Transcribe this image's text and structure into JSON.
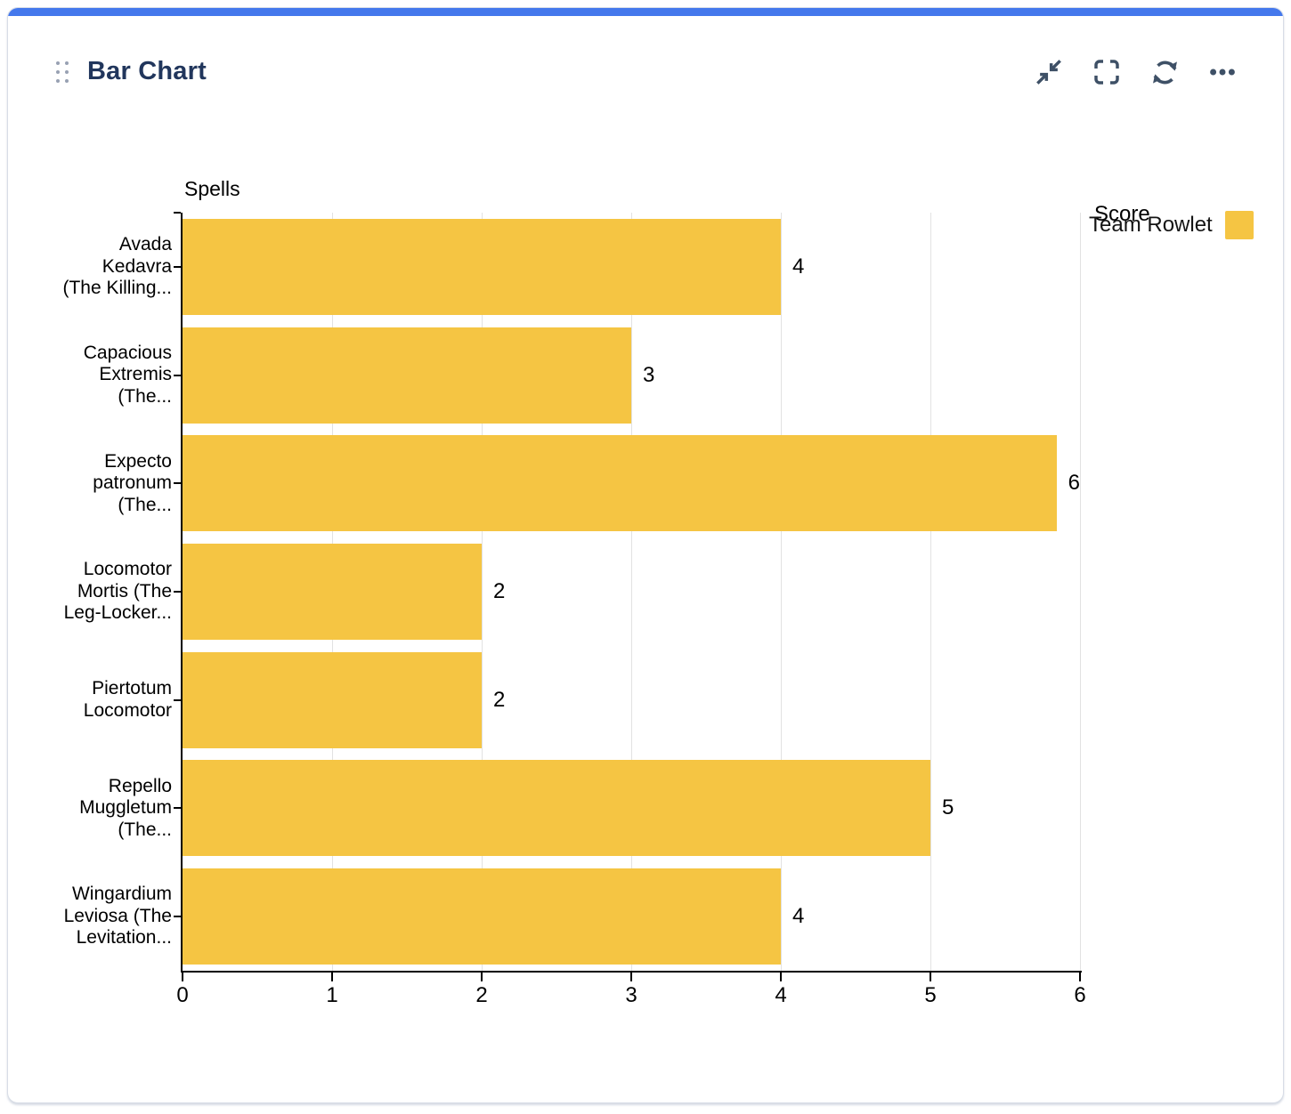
{
  "widget": {
    "title": "Bar Chart",
    "accent_color": "#4478EC",
    "toolbar": {
      "collapse_icon": "collapse-arrows",
      "fullscreen_icon": "fullscreen-brackets",
      "refresh_icon": "refresh-arrows",
      "more_icon": "ellipsis"
    }
  },
  "legend": {
    "label": "Team Rowlet",
    "swatch_color": "#F5C543"
  },
  "chart_data": {
    "type": "bar",
    "orientation": "horizontal",
    "ylabel": "Spells",
    "xlabel": "Score",
    "xlim": [
      0,
      6
    ],
    "xticks": [
      0,
      1,
      2,
      3,
      4,
      5,
      6
    ],
    "grid": true,
    "legend_position": "top-right",
    "bar_color": "#F5C543",
    "categories": [
      "Avada Kedavra (The Killing...",
      "Capacious Extremis (The...",
      "Expecto patronum (The...",
      "Locomotor Mortis (The Leg-Locker...",
      "Piertotum Locomotor",
      "Repello Muggletum (The...",
      "Wingardium Leviosa (The Levitation..."
    ],
    "category_lines": [
      [
        "Avada",
        "Kedavra",
        "(The Killing..."
      ],
      [
        "Capacious",
        "Extremis",
        "(The..."
      ],
      [
        "Expecto",
        "patronum",
        "(The..."
      ],
      [
        "Locomotor",
        "Mortis (The",
        "Leg-Locker..."
      ],
      [
        "Piertotum",
        "Locomotor"
      ],
      [
        "Repello",
        "Muggletum",
        "(The..."
      ],
      [
        "Wingardium",
        "Leviosa (The",
        "Levitation..."
      ]
    ],
    "series": [
      {
        "name": "Team Rowlet",
        "values": [
          4,
          3,
          6,
          2,
          2,
          5,
          4
        ]
      }
    ],
    "value_labels": [
      "4",
      "3",
      "6",
      "2",
      "2",
      "5",
      "4"
    ]
  }
}
